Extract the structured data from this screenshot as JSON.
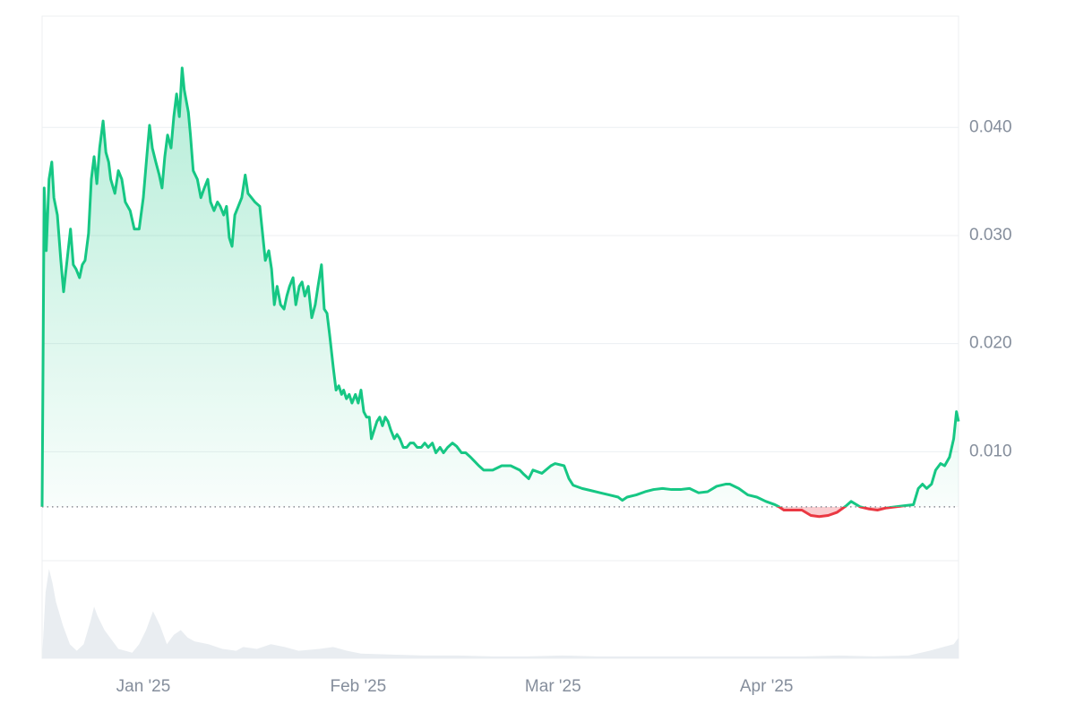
{
  "chart_data": {
    "type": "line",
    "x": [
      0,
      0.3,
      0.6,
      1.0,
      1.4,
      1.7,
      2.2,
      2.7,
      3.1,
      3.6,
      4.1,
      4.5,
      4.9,
      5.4,
      5.8,
      6.2,
      6.7,
      7.1,
      7.5,
      7.9,
      8.3,
      8.8,
      9.2,
      9.6,
      9.9,
      10.5,
      11.0,
      11.5,
      12.0,
      12.7,
      13.3,
      14.0,
      14.6,
      15.1,
      15.5,
      15.9,
      16.4,
      16.9,
      17.3,
      17.7,
      18.1,
      18.6,
      19.0,
      19.4,
      19.8,
      20.2,
      20.5,
      21.1,
      21.4,
      21.8,
      22.4,
      22.9,
      23.4,
      23.9,
      24.3,
      24.8,
      25.3,
      25.7,
      26.2,
      26.6,
      27.0,
      27.4,
      27.8,
      28.3,
      28.8,
      29.3,
      29.7,
      30.2,
      30.7,
      31.4,
      31.8,
      32.2,
      32.7,
      33.1,
      33.5,
      33.9,
      34.4,
      34.9,
      35.3,
      35.7,
      36.2,
      36.6,
      37.1,
      37.5,
      37.9,
      38.4,
      38.9,
      39.4,
      39.8,
      40.3,
      40.7,
      41.1,
      41.5,
      42.0,
      42.4,
      42.8,
      43.2,
      43.5,
      43.9,
      44.3,
      44.7,
      45.2,
      45.6,
      46.0,
      46.4,
      46.8,
      47.2,
      47.5,
      47.9,
      48.3,
      48.7,
      49.1,
      49.5,
      49.9,
      50.3,
      50.8,
      51.2,
      51.6,
      52.1,
      52.6,
      53.1,
      53.6,
      54.1,
      54.7,
      55.2,
      55.7,
      56.3,
      56.8,
      57.4,
      57.9,
      58.5,
      59.2,
      59.8,
      60.5,
      61.1,
      61.8,
      62.4,
      63.0,
      63.7,
      65.0,
      66.3,
      67.6,
      68.9,
      69.5,
      70.2,
      70.8,
      72.1,
      73.4,
      74.0,
      75.3,
      76.0,
      76.6,
      77.9,
      79.2,
      80.5,
      81.8,
      83.1,
      83.7,
      84.4,
      85.7,
      87.0,
      88.2,
      89.5,
      90.8,
      92.1,
      93.4,
      94.7,
      96.0,
      97.3,
      98.6,
      99.2,
      100.5,
      101.8,
      103.1,
      104.4,
      105.7,
      106.3,
      107.0,
      108.3,
      109.6,
      110.9,
      112.1,
      113.4,
      114.7,
      116.0,
      116.7,
      118.0,
      119.3,
      120.5,
      121.8,
      123.1,
      124.4,
      125.7,
      126.4,
      127.0,
      127.6,
      128.3,
      128.9,
      129.6,
      130.2,
      130.9,
      131.5,
      131.9,
      132.2
    ],
    "values": [
      0.0049,
      0.0344,
      0.0286,
      0.0352,
      0.0368,
      0.0335,
      0.0319,
      0.0277,
      0.0248,
      0.0277,
      0.0306,
      0.0273,
      0.0269,
      0.0261,
      0.0273,
      0.0277,
      0.0302,
      0.0352,
      0.0373,
      0.0348,
      0.0381,
      0.0406,
      0.0377,
      0.0368,
      0.0352,
      0.0339,
      0.036,
      0.0352,
      0.0331,
      0.0323,
      0.0306,
      0.0306,
      0.0335,
      0.0373,
      0.0402,
      0.0381,
      0.0368,
      0.0356,
      0.0344,
      0.0373,
      0.0393,
      0.0381,
      0.041,
      0.0431,
      0.041,
      0.0455,
      0.0435,
      0.0414,
      0.0393,
      0.036,
      0.0352,
      0.0335,
      0.0344,
      0.0352,
      0.0331,
      0.0323,
      0.0331,
      0.0327,
      0.0319,
      0.0327,
      0.0298,
      0.029,
      0.0319,
      0.0327,
      0.0335,
      0.0356,
      0.0339,
      0.0335,
      0.0331,
      0.0327,
      0.0302,
      0.0277,
      0.0286,
      0.0269,
      0.0236,
      0.0253,
      0.0236,
      0.0232,
      0.0244,
      0.0253,
      0.0261,
      0.0236,
      0.0253,
      0.0257,
      0.0244,
      0.0253,
      0.0224,
      0.0236,
      0.0253,
      0.0273,
      0.0232,
      0.0228,
      0.0207,
      0.0178,
      0.0157,
      0.0161,
      0.0153,
      0.0157,
      0.0149,
      0.0153,
      0.0145,
      0.0153,
      0.0145,
      0.0157,
      0.0137,
      0.0132,
      0.0132,
      0.0112,
      0.012,
      0.0128,
      0.0132,
      0.0124,
      0.0132,
      0.0128,
      0.012,
      0.0112,
      0.0116,
      0.0112,
      0.0104,
      0.0104,
      0.0108,
      0.0108,
      0.0104,
      0.0104,
      0.0108,
      0.0104,
      0.0108,
      0.0099,
      0.0104,
      0.0099,
      0.0104,
      0.0108,
      0.0105,
      0.0099,
      0.0099,
      0.0095,
      0.0091,
      0.0087,
      0.0083,
      0.0083,
      0.0087,
      0.0087,
      0.0083,
      0.0079,
      0.0075,
      0.0083,
      0.008,
      0.0087,
      0.0089,
      0.0087,
      0.0075,
      0.0069,
      0.0066,
      0.0064,
      0.0062,
      0.006,
      0.0058,
      0.0055,
      0.0058,
      0.006,
      0.0063,
      0.0065,
      0.0066,
      0.0065,
      0.0065,
      0.0066,
      0.0062,
      0.0063,
      0.0068,
      0.007,
      0.007,
      0.0066,
      0.006,
      0.0058,
      0.0054,
      0.0051,
      0.0049,
      0.0046,
      0.0046,
      0.0046,
      0.0041,
      0.004,
      0.0041,
      0.0044,
      0.005,
      0.0054,
      0.0049,
      0.0047,
      0.0046,
      0.0048,
      0.0049,
      0.005,
      0.0051,
      0.0066,
      0.007,
      0.0066,
      0.007,
      0.0083,
      0.0089,
      0.0087,
      0.0095,
      0.0112,
      0.0137,
      0.0128
    ],
    "color": "#16c784",
    "down_color": "#ea3943",
    "reference_line": 0.0049,
    "xlim": [
      0,
      132.2
    ],
    "xticks": [
      {
        "value": 14.6,
        "label": "Jan '25"
      },
      {
        "value": 45.6,
        "label": "Feb '25"
      },
      {
        "value": 73.7,
        "label": "Mar '25"
      },
      {
        "value": 104.5,
        "label": "Apr '25"
      }
    ],
    "ylim": [
      0,
      0.0503
    ],
    "yticks": [
      {
        "value": 0.01,
        "label": "0.010"
      },
      {
        "value": 0.02,
        "label": "0.020"
      },
      {
        "value": 0.03,
        "label": "0.030"
      },
      {
        "value": 0.04,
        "label": "0.040"
      }
    ],
    "grid": true,
    "volume_x": [
      0,
      0.5,
      1,
      1.5,
      2,
      3,
      4,
      5,
      6,
      7,
      7.5,
      8,
      9,
      10,
      11,
      12,
      13,
      14,
      15,
      16,
      17,
      18,
      19,
      20,
      21,
      22,
      24,
      26,
      28,
      29,
      31,
      33,
      35,
      37,
      40,
      42,
      44,
      46,
      50,
      55,
      60,
      65,
      70,
      75,
      80,
      85,
      90,
      95,
      100,
      105,
      110,
      115,
      120,
      125,
      128,
      130,
      131.5,
      132.2
    ],
    "volume_values": [
      0,
      70,
      95,
      80,
      60,
      35,
      15,
      8,
      15,
      40,
      55,
      45,
      30,
      20,
      10,
      8,
      6,
      15,
      30,
      50,
      35,
      15,
      25,
      30,
      22,
      18,
      15,
      10,
      8,
      12,
      10,
      15,
      12,
      8,
      10,
      12,
      8,
      5,
      4,
      3,
      3,
      2,
      2,
      3,
      2,
      2,
      2,
      2,
      2,
      2,
      2,
      3,
      2,
      3,
      8,
      12,
      15,
      22
    ],
    "volume_lim": [
      0,
      100
    ],
    "volume_color": "#e9edf1"
  }
}
